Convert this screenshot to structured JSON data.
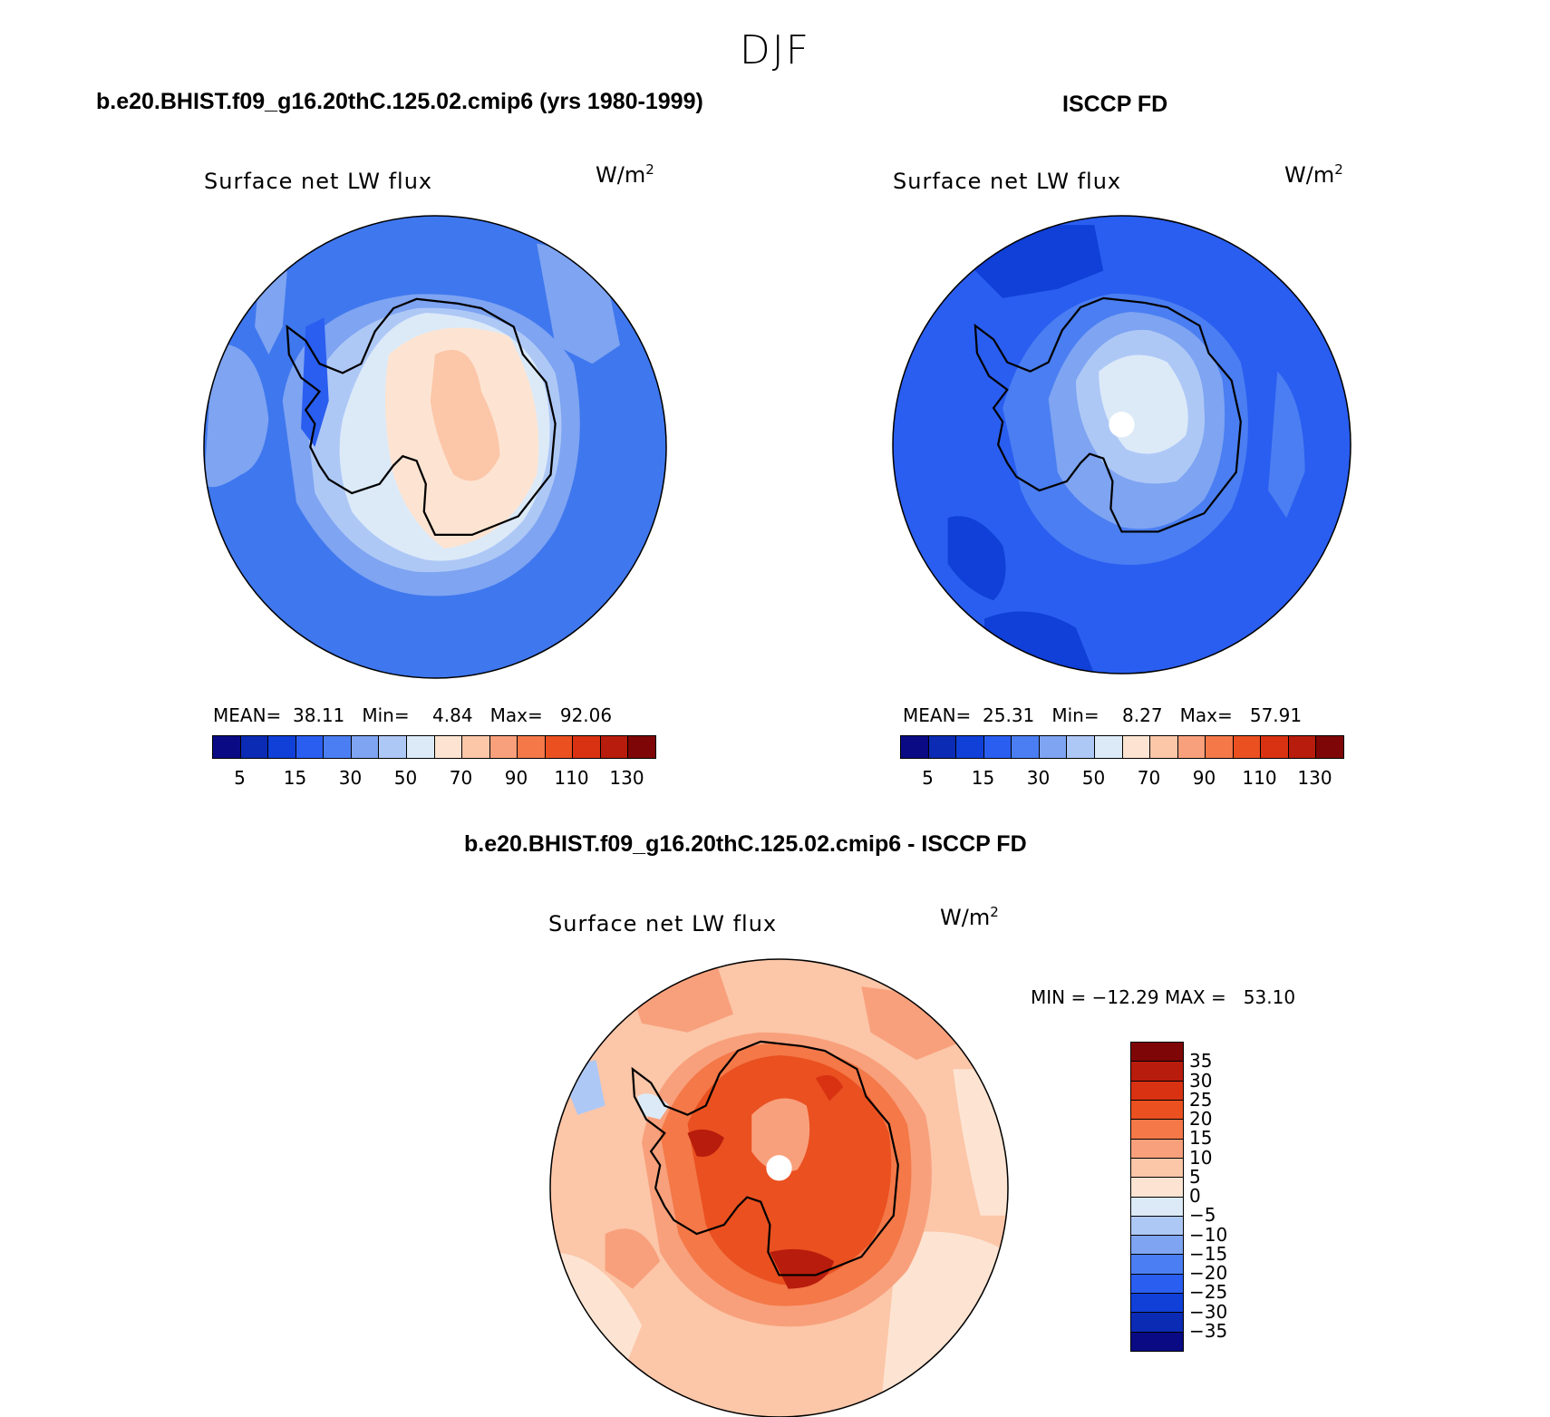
{
  "figure": {
    "season": "DJF"
  },
  "panels": [
    {
      "id": "model",
      "case_title": "b.e20.BHIST.f09_g16.20thC.125.02.cmip6 (yrs 1980-1999)",
      "plot_title": "Surface net LW flux",
      "units": "W/m",
      "units_exp": "2",
      "stats": {
        "mean_label": "MEAN=",
        "mean": "38.11",
        "min_label": "Min=",
        "min": "4.84",
        "max_label": "Max=",
        "max": "92.06"
      }
    },
    {
      "id": "obs",
      "case_title": "ISCCP FD",
      "plot_title": "Surface net LW flux",
      "units": "W/m",
      "units_exp": "2",
      "stats": {
        "mean_label": "MEAN=",
        "mean": "25.31",
        "min_label": "Min=",
        "min": "8.27",
        "max_label": "Max=",
        "max": "57.91"
      }
    },
    {
      "id": "diff",
      "case_title": "b.e20.BHIST.f09_g16.20thC.125.02.cmip6 - ISCCP FD",
      "plot_title": "Surface net LW flux",
      "units": "W/m",
      "units_exp": "2",
      "stats_text": "MIN = −12.29 MAX =   53.10"
    }
  ],
  "abs_colorbar": {
    "colors": [
      "#0a0a84",
      "#0b2bb4",
      "#1040d8",
      "#2a5ef0",
      "#4a7ef2",
      "#7ea4f2",
      "#aec8f6",
      "#dceaf8",
      "#fde4d2",
      "#fcc6a8",
      "#f8a07c",
      "#f47848",
      "#ea5020",
      "#d83212",
      "#b81c0c",
      "#7e0606"
    ],
    "ticks": [
      "5",
      "15",
      "30",
      "50",
      "70",
      "90",
      "110",
      "130"
    ]
  },
  "diff_colorbar": {
    "colors": [
      "#7e0606",
      "#b81c0c",
      "#d83212",
      "#ea5020",
      "#f47848",
      "#f8a07c",
      "#fcc6a8",
      "#fde4d2",
      "#dceaf8",
      "#aec8f6",
      "#7ea4f2",
      "#4a7ef2",
      "#2a5ef0",
      "#1040d8",
      "#0b2bb4",
      "#0a0a84"
    ],
    "ticks": [
      "35",
      "30",
      "25",
      "20",
      "15",
      "10",
      "5",
      "0",
      "−5",
      "−10",
      "−15",
      "−20",
      "−25",
      "−30",
      "−35"
    ]
  }
}
